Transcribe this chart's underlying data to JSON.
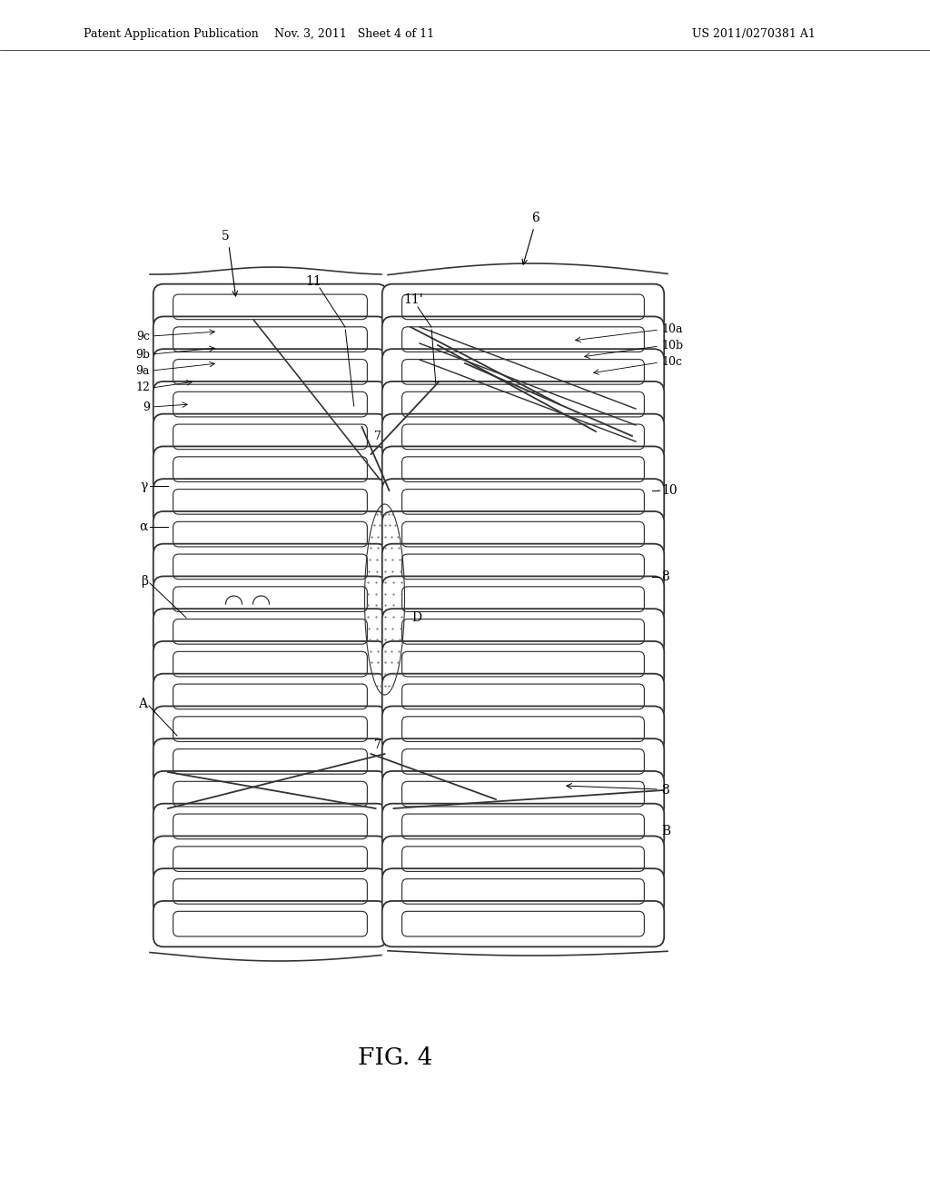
{
  "bg_color": "#ffffff",
  "header_left": "Patent Application Publication",
  "header_mid": "Nov. 3, 2011   Sheet 4 of 11",
  "header_right": "US 2011/0270381 A1",
  "figure_label": "FIG. 4",
  "line_color": "#333333",
  "coil_lw": 1.3,
  "label_fs": 10,
  "label_fs_sm": 9
}
